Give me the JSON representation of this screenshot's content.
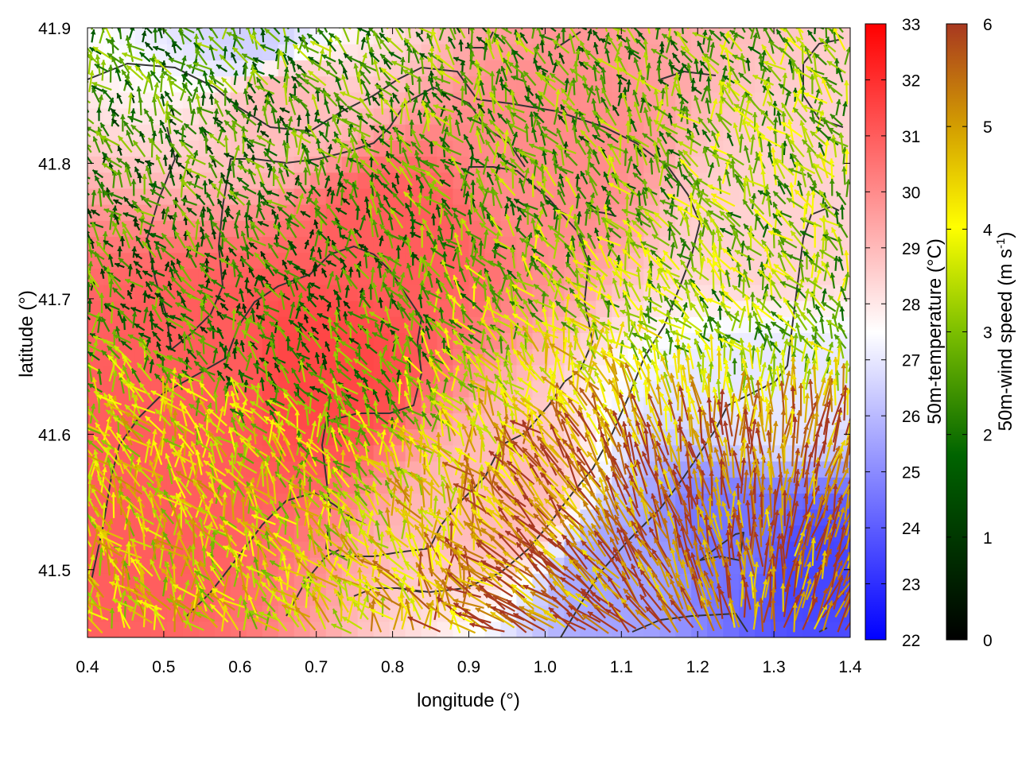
{
  "chart_data": {
    "type": "heatmap",
    "title": "",
    "xlabel": "longitude (°)",
    "ylabel": "latitude (°)",
    "xlim": [
      0.4,
      1.4
    ],
    "ylim": [
      41.45,
      41.9
    ],
    "xticks": [
      "0.4",
      "0.5",
      "0.6",
      "0.7",
      "0.8",
      "0.9",
      "1.0",
      "1.1",
      "1.2",
      "1.3",
      "1.4"
    ],
    "yticks": [
      "41.5",
      "41.6",
      "41.7",
      "41.8",
      "41.9"
    ],
    "temperature_colorbar": {
      "label": "50m-temperature (°C)",
      "range": [
        22,
        33
      ],
      "ticks": [
        "22",
        "23",
        "24",
        "25",
        "26",
        "27",
        "28",
        "29",
        "30",
        "31",
        "32",
        "33"
      ],
      "colors": [
        "#0000ff",
        "#ffffff",
        "#ff0000"
      ]
    },
    "wind_colorbar": {
      "label": "50m-wind speed (m s",
      "label_sup": "-1",
      "label_end": ")",
      "range": [
        0,
        6
      ],
      "ticks": [
        "0",
        "1",
        "2",
        "3",
        "4",
        "5",
        "6"
      ],
      "colors": [
        "#000000",
        "#006400",
        "#7cbf00",
        "#ffff00",
        "#d4a000",
        "#a83820"
      ]
    },
    "temperature_field_samples": [
      {
        "lon": 0.45,
        "lat": 41.55,
        "t": 31.0
      },
      {
        "lon": 0.55,
        "lat": 41.65,
        "t": 31.0
      },
      {
        "lon": 0.7,
        "lat": 41.65,
        "t": 31.5
      },
      {
        "lon": 0.8,
        "lat": 41.75,
        "t": 31.0
      },
      {
        "lon": 0.65,
        "lat": 41.85,
        "t": 29.0
      },
      {
        "lon": 1.0,
        "lat": 41.8,
        "t": 30.0
      },
      {
        "lon": 1.3,
        "lat": 41.75,
        "t": 28.5
      },
      {
        "lon": 1.3,
        "lat": 41.63,
        "t": 27.0
      },
      {
        "lon": 1.25,
        "lat": 41.52,
        "t": 24.5
      },
      {
        "lon": 1.35,
        "lat": 41.5,
        "t": 23.5
      },
      {
        "lon": 1.1,
        "lat": 41.5,
        "t": 25.5
      },
      {
        "lon": 0.95,
        "lat": 41.55,
        "t": 29.0
      },
      {
        "lon": 0.62,
        "lat": 41.89,
        "t": 26.5
      }
    ],
    "wind_field_description_samples": [
      {
        "lon": 0.6,
        "lat": 41.7,
        "speed": 2.0
      },
      {
        "lon": 0.5,
        "lat": 41.55,
        "speed": 4.0
      },
      {
        "lon": 1.15,
        "lat": 41.5,
        "speed": 5.5
      },
      {
        "lon": 1.3,
        "lat": 41.55,
        "speed": 5.5
      },
      {
        "lon": 1.0,
        "lat": 41.85,
        "speed": 2.5
      },
      {
        "lon": 1.3,
        "lat": 41.7,
        "speed": 3.0
      }
    ]
  }
}
